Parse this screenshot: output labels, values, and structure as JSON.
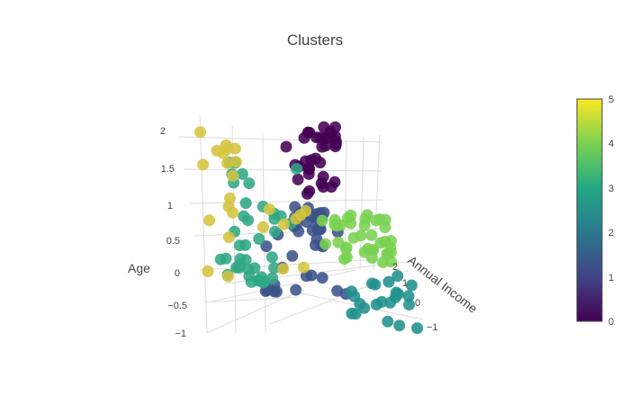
{
  "chart_data": {
    "type": "scatter3d",
    "title": "Clusters",
    "axis_labels": {
      "age": "Age",
      "annual_income": "Annual Income"
    },
    "age_ticks": [
      "2",
      "1.5",
      "1",
      "0.5",
      "0",
      "−0.5",
      "−1"
    ],
    "income_ticks": [
      "2",
      "1",
      "0",
      "−1"
    ],
    "colorbar": {
      "colorscale": "viridis",
      "range": [
        0,
        5
      ],
      "ticks": [
        "5",
        "4",
        "3",
        "2",
        "1",
        "0"
      ]
    },
    "clusters": [
      {
        "cluster": 0,
        "color": "#440154",
        "approx_points": 35
      },
      {
        "cluster": 1,
        "color": "#3b528b",
        "approx_points": 40
      },
      {
        "cluster": 2,
        "color": "#21918c",
        "approx_points": 22
      },
      {
        "cluster": 3,
        "color": "#2fa783",
        "approx_points": 40
      },
      {
        "cluster": 4,
        "color": "#7ad151",
        "approx_points": 38
      },
      {
        "cluster": 5,
        "color": "#d4c43e",
        "approx_points": 25
      }
    ]
  }
}
